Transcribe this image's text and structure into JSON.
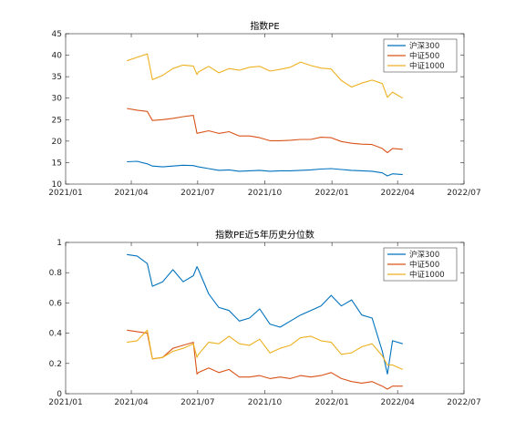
{
  "chart_data": [
    {
      "type": "line",
      "title": "指数PE",
      "xlabel": "",
      "ylabel": "",
      "xlim": [
        "2021-01-01",
        "2022-07-01"
      ],
      "xticks": [
        "2021/01",
        "2021/04",
        "2021/07",
        "2021/10",
        "2022/01",
        "2022/04",
        "2022/07"
      ],
      "ylim": [
        10,
        45
      ],
      "yticks": [
        "10",
        "15",
        "20",
        "25",
        "30",
        "35",
        "40",
        "45"
      ],
      "legend_position": "top-right",
      "x": [
        "2021-03-26",
        "2021-04-09",
        "2021-04-23",
        "2021-04-30",
        "2021-05-14",
        "2021-05-28",
        "2021-06-11",
        "2021-06-25",
        "2021-06-30",
        "2021-07-02",
        "2021-07-16",
        "2021-07-30",
        "2021-08-13",
        "2021-08-27",
        "2021-09-10",
        "2021-09-24",
        "2021-10-08",
        "2021-10-22",
        "2021-11-05",
        "2021-11-19",
        "2021-12-03",
        "2021-12-17",
        "2021-12-31",
        "2022-01-14",
        "2022-01-28",
        "2022-02-11",
        "2022-02-25",
        "2022-03-11",
        "2022-03-18",
        "2022-03-25",
        "2022-04-08"
      ],
      "series": [
        {
          "name": "沪深300",
          "color": "#0072BD",
          "values": [
            15.2,
            15.3,
            14.7,
            14.2,
            14.0,
            14.2,
            14.4,
            14.3,
            14.1,
            14.0,
            13.6,
            13.2,
            13.3,
            13.0,
            13.1,
            13.2,
            13.0,
            13.1,
            13.1,
            13.2,
            13.3,
            13.5,
            13.6,
            13.4,
            13.2,
            13.1,
            13.0,
            12.6,
            11.9,
            12.4,
            12.2
          ]
        },
        {
          "name": "中证500",
          "color": "#D95319",
          "values": [
            27.6,
            27.2,
            26.9,
            24.8,
            25.0,
            25.3,
            25.7,
            26.0,
            21.8,
            21.9,
            22.4,
            21.8,
            22.2,
            21.2,
            21.2,
            20.8,
            20.1,
            20.1,
            20.2,
            20.4,
            20.4,
            20.9,
            20.8,
            19.9,
            19.5,
            19.3,
            19.2,
            18.3,
            17.3,
            18.3,
            18.1
          ]
        },
        {
          "name": "中证1000",
          "color": "#EDB120",
          "values": [
            38.7,
            39.5,
            40.3,
            34.3,
            35.3,
            36.9,
            37.7,
            37.5,
            35.5,
            36.1,
            37.4,
            35.9,
            36.9,
            36.5,
            37.2,
            37.4,
            36.3,
            36.7,
            37.2,
            38.4,
            37.6,
            37.0,
            36.8,
            34.1,
            32.6,
            33.5,
            34.2,
            33.4,
            30.2,
            31.4,
            30.0
          ]
        }
      ]
    },
    {
      "type": "line",
      "title": "指数PE近5年历史分位数",
      "xlabel": "",
      "ylabel": "",
      "xlim": [
        "2021-01-01",
        "2022-07-01"
      ],
      "xticks": [
        "2021/01",
        "2021/04",
        "2021/07",
        "2021/10",
        "2022/01",
        "2022/04",
        "2022/07"
      ],
      "ylim": [
        0,
        1
      ],
      "yticks": [
        "0",
        "0.2",
        "0.4",
        "0.6",
        "0.8",
        "1"
      ],
      "legend_position": "top-right",
      "x": [
        "2021-03-26",
        "2021-04-09",
        "2021-04-23",
        "2021-04-30",
        "2021-05-14",
        "2021-05-28",
        "2021-06-11",
        "2021-06-25",
        "2021-06-30",
        "2021-07-02",
        "2021-07-16",
        "2021-07-30",
        "2021-08-13",
        "2021-08-27",
        "2021-09-10",
        "2021-09-24",
        "2021-10-08",
        "2021-10-22",
        "2021-11-05",
        "2021-11-19",
        "2021-12-03",
        "2021-12-17",
        "2021-12-31",
        "2022-01-14",
        "2022-01-28",
        "2022-02-11",
        "2022-02-25",
        "2022-03-11",
        "2022-03-18",
        "2022-03-25",
        "2022-04-08"
      ],
      "series": [
        {
          "name": "沪深300",
          "color": "#0072BD",
          "values": [
            0.92,
            0.91,
            0.86,
            0.71,
            0.74,
            0.82,
            0.74,
            0.78,
            0.84,
            0.82,
            0.66,
            0.57,
            0.55,
            0.48,
            0.5,
            0.56,
            0.46,
            0.44,
            0.48,
            0.52,
            0.55,
            0.58,
            0.65,
            0.58,
            0.62,
            0.52,
            0.5,
            0.28,
            0.13,
            0.35,
            0.33
          ]
        },
        {
          "name": "中证500",
          "color": "#D95319",
          "values": [
            0.42,
            0.41,
            0.4,
            0.23,
            0.24,
            0.3,
            0.32,
            0.34,
            0.13,
            0.14,
            0.17,
            0.14,
            0.16,
            0.11,
            0.11,
            0.12,
            0.1,
            0.11,
            0.1,
            0.12,
            0.11,
            0.12,
            0.14,
            0.1,
            0.08,
            0.07,
            0.08,
            0.05,
            0.03,
            0.05,
            0.05
          ]
        },
        {
          "name": "中证1000",
          "color": "#EDB120",
          "values": [
            0.34,
            0.35,
            0.42,
            0.23,
            0.24,
            0.28,
            0.3,
            0.33,
            0.24,
            0.26,
            0.34,
            0.33,
            0.38,
            0.33,
            0.32,
            0.36,
            0.27,
            0.3,
            0.32,
            0.37,
            0.38,
            0.35,
            0.34,
            0.26,
            0.27,
            0.31,
            0.33,
            0.25,
            0.19,
            0.19,
            0.16
          ]
        }
      ]
    }
  ]
}
